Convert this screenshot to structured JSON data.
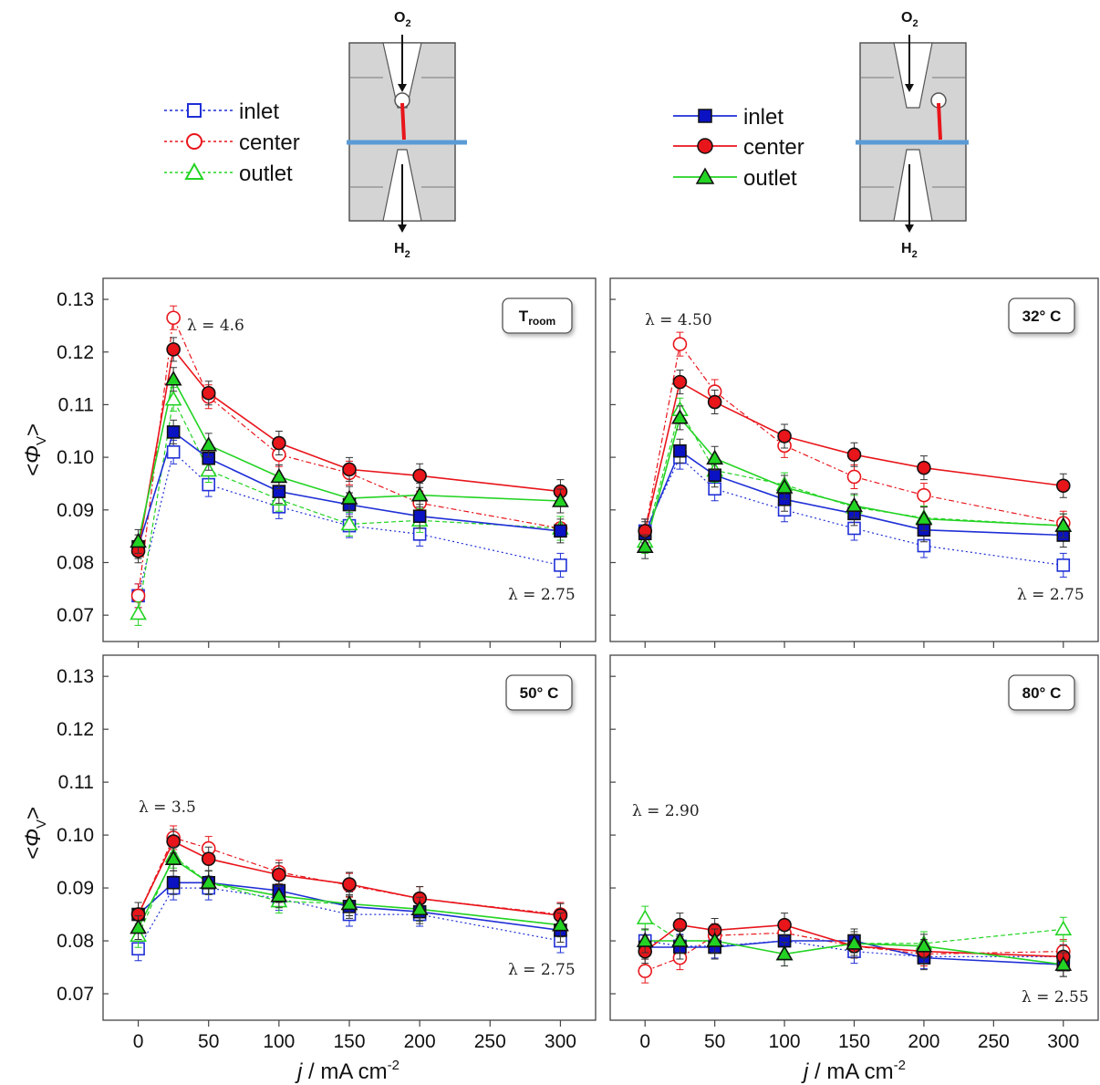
{
  "legends": {
    "open": {
      "inlet": "inlet",
      "center": "center",
      "outlet": "outlet"
    },
    "filled": {
      "inlet": "inlet",
      "center": "center",
      "outlet": "outlet"
    }
  },
  "schematic": {
    "top_gas": "O",
    "top_sub": "2",
    "bottom_gas": "H",
    "bottom_sub": "2"
  },
  "axes": {
    "ylabel_main": "<Φ",
    "ylabel_sub": "V",
    "ylabel_end": ">",
    "xlabel_italic": "j",
    "xlabel_rest": " / mA cm",
    "xlabel_sup": "-2"
  },
  "colors": {
    "inlet": "#1f2fd6",
    "center": "#e8151b",
    "outlet": "#23d323"
  },
  "chart_data": [
    {
      "type": "line",
      "panel": "top-left",
      "badge": "T",
      "badge_sub": "room",
      "lambda_high": "λ = 4.6",
      "lambda_low": "λ = 2.75",
      "x": [
        0,
        25,
        50,
        100,
        150,
        200,
        300
      ],
      "xlim": [
        -25,
        325
      ],
      "ylim": [
        0.065,
        0.134
      ],
      "yticks": [
        "0.07",
        "0.08",
        "0.09",
        "0.10",
        "0.11",
        "0.12",
        "0.13"
      ],
      "xticks": [
        "0",
        "50",
        "100",
        "150",
        "200",
        "250",
        "300"
      ],
      "series": [
        {
          "name": "inlet",
          "style": "open",
          "values": [
            0.0737,
            0.101,
            0.0948,
            0.0906,
            0.087,
            0.0854,
            0.0795
          ]
        },
        {
          "name": "center",
          "style": "open",
          "values": [
            0.0737,
            0.1265,
            0.1115,
            0.1005,
            0.097,
            0.0913,
            0.0865
          ]
        },
        {
          "name": "outlet",
          "style": "open",
          "values": [
            0.0703,
            0.111,
            0.0975,
            0.092,
            0.0873,
            0.088,
            0.0865
          ]
        },
        {
          "name": "inlet",
          "style": "filled",
          "values": [
            0.083,
            0.1048,
            0.0998,
            0.0935,
            0.091,
            0.0888,
            0.086
          ]
        },
        {
          "name": "center",
          "style": "filled",
          "values": [
            0.0822,
            0.1205,
            0.1122,
            0.1027,
            0.0977,
            0.0965,
            0.0935
          ]
        },
        {
          "name": "outlet",
          "style": "filled",
          "values": [
            0.084,
            0.1148,
            0.1023,
            0.0963,
            0.0922,
            0.0928,
            0.0917
          ]
        }
      ]
    },
    {
      "type": "line",
      "panel": "top-right",
      "badge": "32° C",
      "badge_sub": "",
      "lambda_high": "λ = 4.50",
      "lambda_low": "λ = 2.75",
      "x": [
        0,
        25,
        50,
        100,
        150,
        200,
        300
      ],
      "xlim": [
        -25,
        325
      ],
      "ylim": [
        0.065,
        0.134
      ],
      "yticks": [
        "0.07",
        "0.08",
        "0.09",
        "0.10",
        "0.11",
        "0.12",
        "0.13"
      ],
      "xticks": [
        "0",
        "50",
        "100",
        "150",
        "200",
        "250",
        "300"
      ],
      "series": [
        {
          "name": "inlet",
          "style": "open",
          "values": [
            0.086,
            0.1,
            0.094,
            0.09,
            0.0865,
            0.0832,
            0.0795
          ]
        },
        {
          "name": "center",
          "style": "open",
          "values": [
            0.086,
            0.1215,
            0.1125,
            0.1022,
            0.0963,
            0.0928,
            0.0875
          ]
        },
        {
          "name": "outlet",
          "style": "open",
          "values": [
            0.084,
            0.109,
            0.0975,
            0.0948,
            0.0905,
            0.0885,
            0.087
          ]
        },
        {
          "name": "inlet",
          "style": "filled",
          "values": [
            0.0855,
            0.1012,
            0.0966,
            0.092,
            0.0893,
            0.0862,
            0.0852
          ]
        },
        {
          "name": "center",
          "style": "filled",
          "values": [
            0.086,
            0.1143,
            0.1105,
            0.104,
            0.1005,
            0.098,
            0.0946
          ]
        },
        {
          "name": "outlet",
          "style": "filled",
          "values": [
            0.083,
            0.1075,
            0.0998,
            0.0943,
            0.0908,
            0.0883,
            0.087
          ]
        }
      ]
    },
    {
      "type": "line",
      "panel": "bottom-left",
      "badge": "50° C",
      "badge_sub": "",
      "lambda_high": "λ = 3.5",
      "lambda_low": "λ = 2.75",
      "x": [
        0,
        25,
        50,
        100,
        150,
        200,
        300
      ],
      "xlim": [
        -25,
        325
      ],
      "ylim": [
        0.065,
        0.134
      ],
      "yticks": [
        "0.07",
        "0.08",
        "0.09",
        "0.10",
        "0.11",
        "0.12",
        "0.13"
      ],
      "xticks": [
        "0",
        "50",
        "100",
        "150",
        "200",
        "250",
        "300"
      ],
      "series": [
        {
          "name": "inlet",
          "style": "open",
          "values": [
            0.0785,
            0.09,
            0.09,
            0.088,
            0.085,
            0.085,
            0.08
          ]
        },
        {
          "name": "center",
          "style": "open",
          "values": [
            0.085,
            0.0995,
            0.0975,
            0.093,
            0.0905,
            0.088,
            0.085
          ]
        },
        {
          "name": "outlet",
          "style": "open",
          "values": [
            0.081,
            0.096,
            0.091,
            0.0875,
            0.087,
            0.086,
            0.083
          ]
        },
        {
          "name": "inlet",
          "style": "filled",
          "values": [
            0.085,
            0.091,
            0.091,
            0.0895,
            0.0865,
            0.0855,
            0.082
          ]
        },
        {
          "name": "center",
          "style": "filled",
          "values": [
            0.085,
            0.0988,
            0.0955,
            0.0925,
            0.0907,
            0.088,
            0.0848
          ]
        },
        {
          "name": "outlet",
          "style": "filled",
          "values": [
            0.0825,
            0.0955,
            0.091,
            0.0885,
            0.087,
            0.086,
            0.083
          ]
        }
      ]
    },
    {
      "type": "line",
      "panel": "bottom-right",
      "badge": "80° C",
      "badge_sub": "",
      "lambda_high": "λ = 2.90",
      "lambda_low": "λ   = 2.55",
      "x": [
        0,
        25,
        50,
        100,
        150,
        200,
        300
      ],
      "xlim": [
        -25,
        325
      ],
      "ylim": [
        0.065,
        0.134
      ],
      "yticks": [
        "0.07",
        "0.08",
        "0.09",
        "0.10",
        "0.11",
        "0.12",
        "0.13"
      ],
      "xticks": [
        "0",
        "50",
        "100",
        "150",
        "200",
        "250",
        "300"
      ],
      "series": [
        {
          "name": "inlet",
          "style": "open",
          "values": [
            0.08,
            0.079,
            0.079,
            0.08,
            0.078,
            0.077,
            0.077
          ]
        },
        {
          "name": "center",
          "style": "open",
          "values": [
            0.0743,
            0.0768,
            0.081,
            0.0815,
            0.079,
            0.0775,
            0.078
          ]
        },
        {
          "name": "outlet",
          "style": "open",
          "values": [
            0.0843,
            0.08,
            0.08,
            0.0775,
            0.0795,
            0.0795,
            0.0822
          ]
        },
        {
          "name": "inlet",
          "style": "filled",
          "values": [
            0.0788,
            0.0788,
            0.0788,
            0.08,
            0.08,
            0.0768,
            0.0755
          ]
        },
        {
          "name": "center",
          "style": "filled",
          "values": [
            0.078,
            0.083,
            0.082,
            0.083,
            0.079,
            0.078,
            0.077
          ]
        },
        {
          "name": "outlet",
          "style": "filled",
          "values": [
            0.08,
            0.08,
            0.08,
            0.0775,
            0.0795,
            0.079,
            0.0755
          ]
        }
      ]
    }
  ]
}
